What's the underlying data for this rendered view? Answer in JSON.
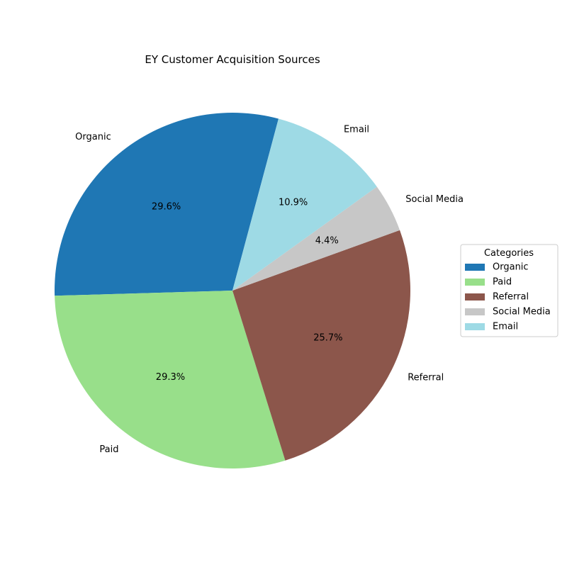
{
  "chart_data": {
    "type": "pie",
    "title": "EY Customer Acquisition Sources",
    "categories": [
      "Organic",
      "Paid",
      "Referral",
      "Social Media",
      "Email"
    ],
    "values": [
      29.6,
      29.3,
      25.7,
      4.4,
      10.9
    ],
    "labels": [
      "29.6%",
      "29.3%",
      "25.7%",
      "4.4%",
      "10.9%"
    ],
    "colors": [
      "#1f77b4",
      "#98df8a",
      "#8c564b",
      "#c7c7c7",
      "#9edae5"
    ],
    "legend": {
      "title": "Categories",
      "placement": "center-right",
      "entries": [
        "Organic",
        "Paid",
        "Referral",
        "Social Media",
        "Email"
      ]
    },
    "start_angle_deg": 75,
    "direction": "counterclockwise"
  }
}
